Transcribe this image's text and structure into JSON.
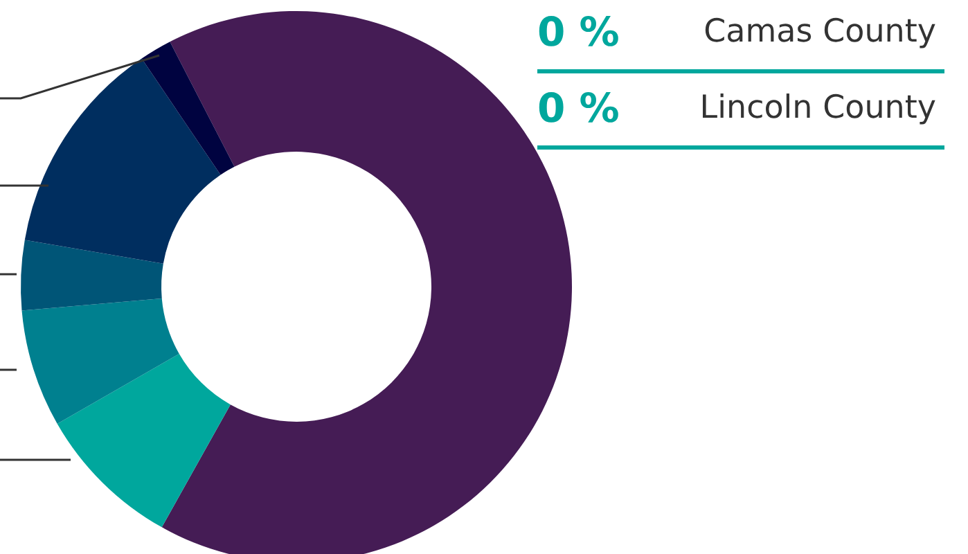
{
  "chart_data": {
    "type": "donut",
    "categories": [
      null,
      null,
      null,
      null,
      null,
      null
    ],
    "values": [
      65.7,
      8.6,
      6.9,
      4.1,
      12.8,
      1.9
    ],
    "colors": [
      "#451c55",
      "#00a79d",
      "#00808f",
      "#005577",
      "#002e5f",
      "#000340"
    ],
    "legend": false,
    "annotations": [
      "0 %",
      "Camas County",
      "0 %",
      "Lincoln County"
    ]
  }
}
